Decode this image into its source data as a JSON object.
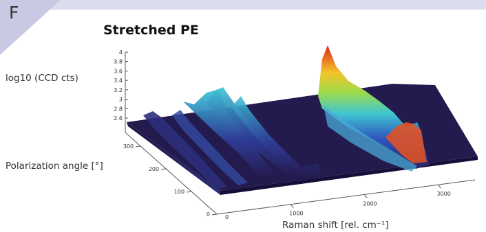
{
  "panel": {
    "letter": "F"
  },
  "chart_data": {
    "type": "surface",
    "title": "Stretched PE",
    "xlabel": "Raman shift [rel. cm⁻¹]",
    "ylabel": "Polarization angle [°]",
    "zlabel": "log10 (CCD cts)",
    "xlim": [
      0,
      3500
    ],
    "ylim": [
      0,
      360
    ],
    "zlim": [
      2.6,
      4.0
    ],
    "x_ticks": [
      "1000",
      "2000",
      "3000"
    ],
    "y_ticks": [
      "0",
      "100",
      "200",
      "300"
    ],
    "z_ticks": [
      "4",
      "3.8",
      "3.6",
      "3.4",
      "3.2",
      "3",
      "2.8",
      "2.6"
    ],
    "origin_label": "0",
    "colormap": "dark-purple to blue, cyan, yellow, red",
    "peaks": [
      {
        "raman_shift": 1060,
        "log10_counts": 3.25
      },
      {
        "raman_shift": 1130,
        "log10_counts": 3.35
      },
      {
        "raman_shift": 1295,
        "log10_counts": 3.3
      },
      {
        "raman_shift": 1440,
        "log10_counts": 3.2
      },
      {
        "raman_shift": 2850,
        "log10_counts": 4.0
      },
      {
        "raman_shift": 2885,
        "log10_counts": 3.6
      },
      {
        "raman_shift": 2930,
        "log10_counts": 3.1
      }
    ]
  }
}
